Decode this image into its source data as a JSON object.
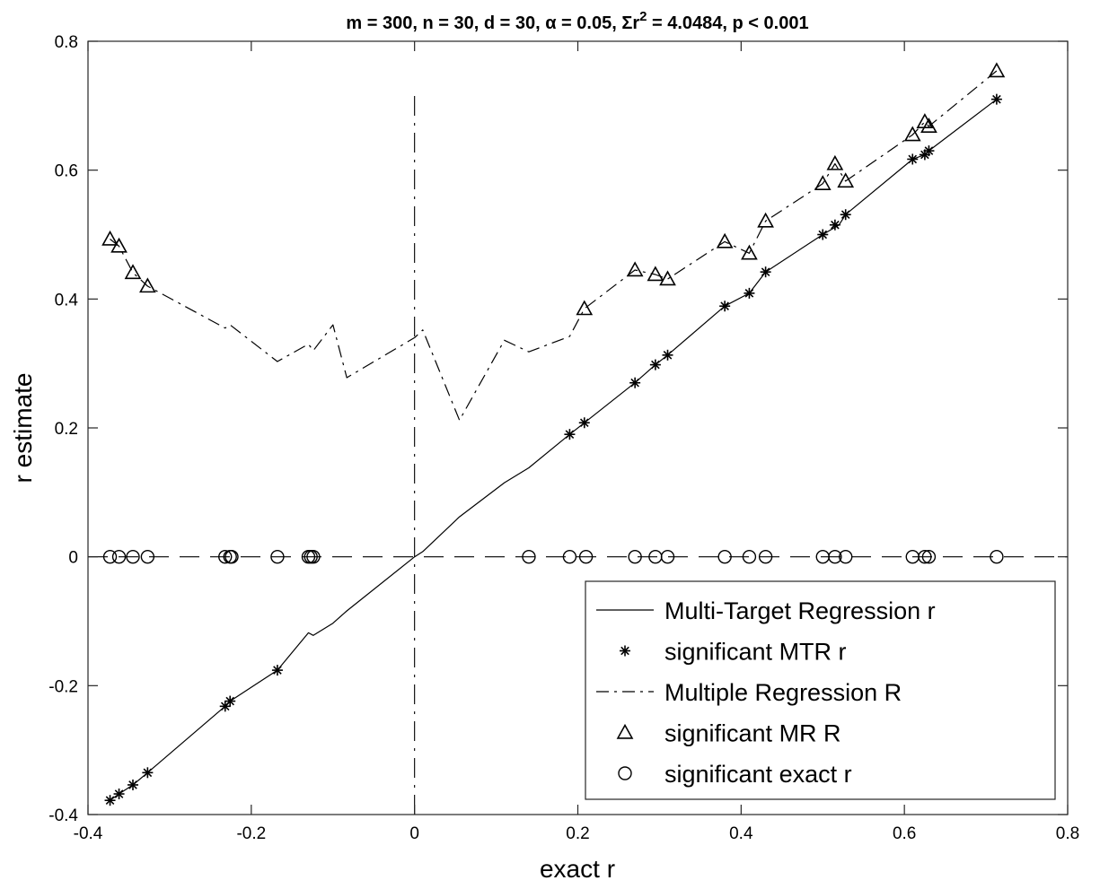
{
  "chart_data": {
    "type": "line",
    "title": "m = 300, n = 30, d = 30, α = 0.05, Σr² = 4.0484, p < 0.001",
    "xlabel": "exact r",
    "ylabel": "r estimate",
    "xlim": [
      -0.4,
      0.8
    ],
    "ylim": [
      -0.4,
      0.8
    ],
    "xticks": [
      "-0.4",
      "-0.2",
      "0",
      "0.2",
      "0.4",
      "0.6",
      "0.8"
    ],
    "yticks": [
      "-0.4",
      "-0.2",
      "0",
      "0.2",
      "0.4",
      "0.6",
      "0.8"
    ],
    "grid": false,
    "legend_position": "bottom-right",
    "series": [
      {
        "name": "Multi-Target Regression r",
        "style": "solid",
        "x": [
          -0.373,
          -0.362,
          -0.345,
          -0.327,
          -0.232,
          -0.226,
          -0.168,
          -0.13,
          -0.124,
          -0.1,
          -0.083,
          0.0,
          0.01,
          0.055,
          0.11,
          0.14,
          0.19,
          0.208,
          0.27,
          0.295,
          0.31,
          0.38,
          0.41,
          0.43,
          0.5,
          0.52,
          0.528,
          0.61,
          0.625,
          0.63,
          0.713
        ],
        "y": [
          -0.378,
          -0.368,
          -0.354,
          -0.335,
          -0.232,
          -0.224,
          -0.176,
          -0.118,
          -0.122,
          -0.103,
          -0.084,
          0.0,
          0.008,
          0.062,
          0.115,
          0.138,
          0.19,
          0.208,
          0.27,
          0.298,
          0.313,
          0.389,
          0.409,
          0.442,
          0.5,
          0.515,
          0.531,
          0.617,
          0.624,
          0.63,
          0.71
        ]
      },
      {
        "name": "significant MTR r",
        "style": "markers-star",
        "x": [
          -0.373,
          -0.362,
          -0.345,
          -0.327,
          -0.232,
          -0.226,
          -0.168,
          0.19,
          0.208,
          0.27,
          0.295,
          0.31,
          0.38,
          0.41,
          0.43,
          0.5,
          0.515,
          0.528,
          0.61,
          0.625,
          0.63,
          0.713
        ],
        "y": [
          -0.378,
          -0.368,
          -0.354,
          -0.335,
          -0.232,
          -0.224,
          -0.176,
          0.19,
          0.208,
          0.27,
          0.298,
          0.313,
          0.389,
          0.409,
          0.442,
          0.5,
          0.515,
          0.531,
          0.617,
          0.624,
          0.63,
          0.71
        ]
      },
      {
        "name": "Multiple Regression R",
        "style": "dashdot",
        "x": [
          -0.373,
          -0.362,
          -0.345,
          -0.327,
          -0.232,
          -0.226,
          -0.168,
          -0.13,
          -0.124,
          -0.1,
          -0.083,
          0.0,
          0.01,
          0.055,
          0.11,
          0.14,
          0.19,
          0.208,
          0.27,
          0.295,
          0.31,
          0.38,
          0.41,
          0.43,
          0.5,
          0.515,
          0.528,
          0.61,
          0.625,
          0.63,
          0.713
        ],
        "y": [
          0.493,
          0.482,
          0.441,
          0.42,
          0.355,
          0.36,
          0.303,
          0.33,
          0.32,
          0.36,
          0.278,
          0.34,
          0.352,
          0.212,
          0.336,
          0.318,
          0.342,
          0.385,
          0.445,
          0.438,
          0.431,
          0.489,
          0.471,
          0.521,
          0.579,
          0.61,
          0.583,
          0.655,
          0.675,
          0.668,
          0.754
        ]
      },
      {
        "name": "significant MR R",
        "style": "markers-triangle",
        "x": [
          -0.373,
          -0.362,
          -0.345,
          -0.327,
          0.208,
          0.27,
          0.295,
          0.31,
          0.38,
          0.41,
          0.43,
          0.5,
          0.515,
          0.528,
          0.61,
          0.625,
          0.63,
          0.713
        ],
        "y": [
          0.493,
          0.482,
          0.441,
          0.42,
          0.385,
          0.445,
          0.438,
          0.431,
          0.489,
          0.471,
          0.521,
          0.579,
          0.61,
          0.583,
          0.655,
          0.675,
          0.668,
          0.754
        ]
      },
      {
        "name": "significant exact r",
        "style": "markers-circle",
        "x": [
          -0.373,
          -0.362,
          -0.345,
          -0.327,
          -0.232,
          -0.226,
          -0.224,
          -0.168,
          -0.13,
          -0.127,
          -0.124,
          0.14,
          0.19,
          0.21,
          0.27,
          0.295,
          0.31,
          0.38,
          0.41,
          0.43,
          0.5,
          0.515,
          0.528,
          0.61,
          0.625,
          0.63,
          0.713
        ],
        "y": [
          0,
          0,
          0,
          0,
          0,
          0,
          0,
          0,
          0,
          0,
          0,
          0,
          0,
          0,
          0,
          0,
          0,
          0,
          0,
          0,
          0,
          0,
          0,
          0,
          0,
          0,
          0
        ]
      }
    ],
    "reference_lines": [
      {
        "orientation": "horizontal",
        "value": 0,
        "style": "dashed"
      },
      {
        "orientation": "vertical",
        "value": 0,
        "style": "dashdot",
        "range": [
          -0.4,
          0.715
        ]
      }
    ]
  }
}
